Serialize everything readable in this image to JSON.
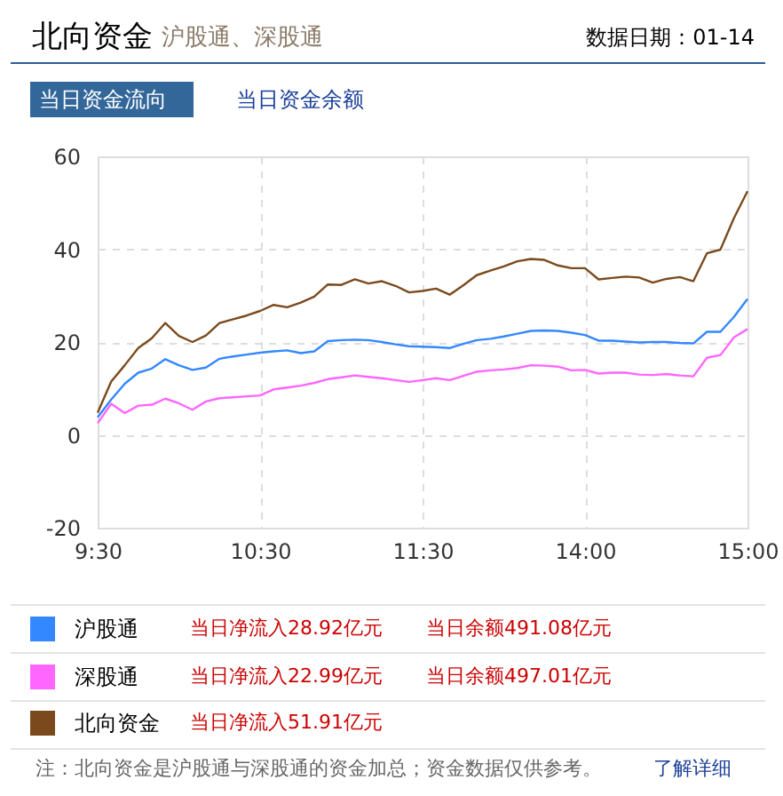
{
  "chart_data": {
    "type": "line",
    "title": "北向资金",
    "subtitle": "沪股通、深股通",
    "annotations": [
      "数据日期：01-14",
      "当日资金流向",
      "当日资金余额",
      "当日净流入28.92亿元",
      "当日余额491.08亿元",
      "当日净流入22.99亿元",
      "当日余额497.01亿元",
      "当日净流入51.91亿元",
      "注：北向资金是沪股通与深股通的资金加总；资金数据仅供参考。",
      "了解详细"
    ],
    "categories": [
      "9:30",
      null,
      null,
      null,
      null,
      null,
      null,
      null,
      null,
      null,
      null,
      null,
      "10:30",
      null,
      null,
      null,
      null,
      null,
      null,
      null,
      null,
      null,
      null,
      null,
      "11:30",
      null,
      null,
      null,
      null,
      null,
      null,
      null,
      null,
      null,
      null,
      null,
      "14:00",
      null,
      null,
      null,
      null,
      null,
      null,
      null,
      null,
      null,
      null,
      null,
      "15:00"
    ],
    "ylim": [
      -20,
      60
    ],
    "yticks": [
      -20,
      0,
      20,
      40,
      60
    ],
    "grid": true,
    "legend": "bottom",
    "series": [
      {
        "name": "沪股通",
        "color": "#3388ff",
        "values": [
          3.8,
          7.6,
          11,
          13.4,
          14.3,
          16.3,
          15,
          14,
          14.5,
          16.4,
          16.9,
          17.3,
          17.7,
          18,
          18.2,
          17.6,
          18,
          20.2,
          20.4,
          20.5,
          20.4,
          20,
          19.5,
          19.1,
          19,
          18.9,
          18.7,
          19.6,
          20.4,
          20.7,
          21.2,
          21.8,
          22.4,
          22.5,
          22.4,
          22,
          21.5,
          20.3,
          20.3,
          20.1,
          19.9,
          20,
          20,
          19.8,
          19.7,
          22.2,
          22.2,
          25.4,
          29.3
        ]
      },
      {
        "name": "深股通",
        "color": "#ff66ff",
        "values": [
          2.5,
          6.7,
          4.7,
          6.3,
          6.5,
          7.8,
          6.8,
          5.4,
          7.2,
          7.9,
          8.1,
          8.3,
          8.5,
          9.8,
          10.2,
          10.6,
          11.2,
          12,
          12.4,
          12.8,
          12.5,
          12.2,
          11.8,
          11.4,
          11.8,
          12.2,
          11.8,
          12.7,
          13.6,
          13.9,
          14.1,
          14.4,
          15,
          14.9,
          14.7,
          13.9,
          14,
          13.2,
          13.4,
          13.4,
          13,
          12.9,
          13.1,
          12.8,
          12.6,
          16.6,
          17.2,
          21,
          22.8
        ]
      },
      {
        "name": "北向资金",
        "color": "#7b4a1c",
        "values": [
          4.8,
          11.5,
          15,
          18.7,
          20.8,
          24.1,
          21.3,
          20,
          21.4,
          24.1,
          24.9,
          25.7,
          26.7,
          28,
          27.5,
          28.5,
          29.8,
          32.4,
          32.3,
          33.5,
          32.6,
          33.1,
          32.1,
          30.7,
          31,
          31.5,
          30.2,
          32.2,
          34.4,
          35.4,
          36.3,
          37.4,
          37.9,
          37.7,
          36.5,
          35.9,
          35.9,
          33.5,
          33.8,
          34.1,
          33.9,
          32.8,
          33.6,
          34,
          33.1,
          39.1,
          39.9,
          46.7,
          52.5
        ]
      }
    ]
  }
}
